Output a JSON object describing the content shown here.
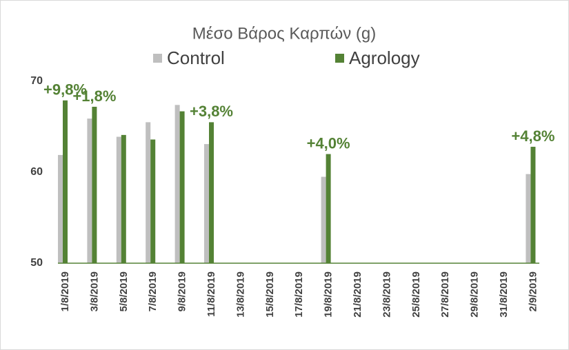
{
  "chart_data": {
    "type": "bar",
    "title": "Μέσο Βάρος Καρπών (g)",
    "categories": [
      "1/8/2019",
      null,
      "3/8/2019",
      null,
      "5/8/2019",
      null,
      "7/8/2019",
      null,
      "9/8/2019",
      null,
      "11/8/2019",
      null,
      "13/8/2019",
      null,
      "15/8/2019",
      null,
      "17/8/2019",
      null,
      "19/8/2019",
      null,
      "21/8/2019",
      null,
      "23/8/2019",
      null,
      "25/8/2019",
      null,
      "27/8/2019",
      null,
      "29/8/2019",
      null,
      "31/8/2019",
      null,
      "2/9/2019"
    ],
    "series": [
      {
        "name": "Control",
        "color": "#bfbfbf",
        "values": [
          61.9,
          null,
          65.9,
          null,
          63.9,
          null,
          65.5,
          null,
          67.4,
          null,
          63.1,
          null,
          null,
          null,
          null,
          null,
          null,
          null,
          59.5,
          null,
          null,
          null,
          null,
          null,
          null,
          null,
          null,
          null,
          null,
          null,
          null,
          null,
          59.8
        ]
      },
      {
        "name": "Agrology",
        "color": "#548235",
        "values": [
          67.9,
          null,
          67.2,
          null,
          64.1,
          null,
          63.6,
          null,
          66.7,
          null,
          65.5,
          null,
          null,
          null,
          null,
          null,
          null,
          null,
          62.0,
          null,
          null,
          null,
          null,
          null,
          null,
          null,
          null,
          null,
          null,
          null,
          null,
          null,
          62.8
        ]
      }
    ],
    "annotations": [
      {
        "text": "+9,8%",
        "x": "1/8/2019"
      },
      {
        "text": "+1,8%",
        "x": "3/8/2019"
      },
      {
        "text": "+3,8%",
        "x": "11/8/2019"
      },
      {
        "text": "+4,0%",
        "x": "19/8/2019"
      },
      {
        "text": "+4,8%",
        "x": "2/9/2019"
      }
    ],
    "ylim": [
      50,
      70
    ],
    "yticks": [
      50,
      60,
      70
    ],
    "grid": false
  }
}
